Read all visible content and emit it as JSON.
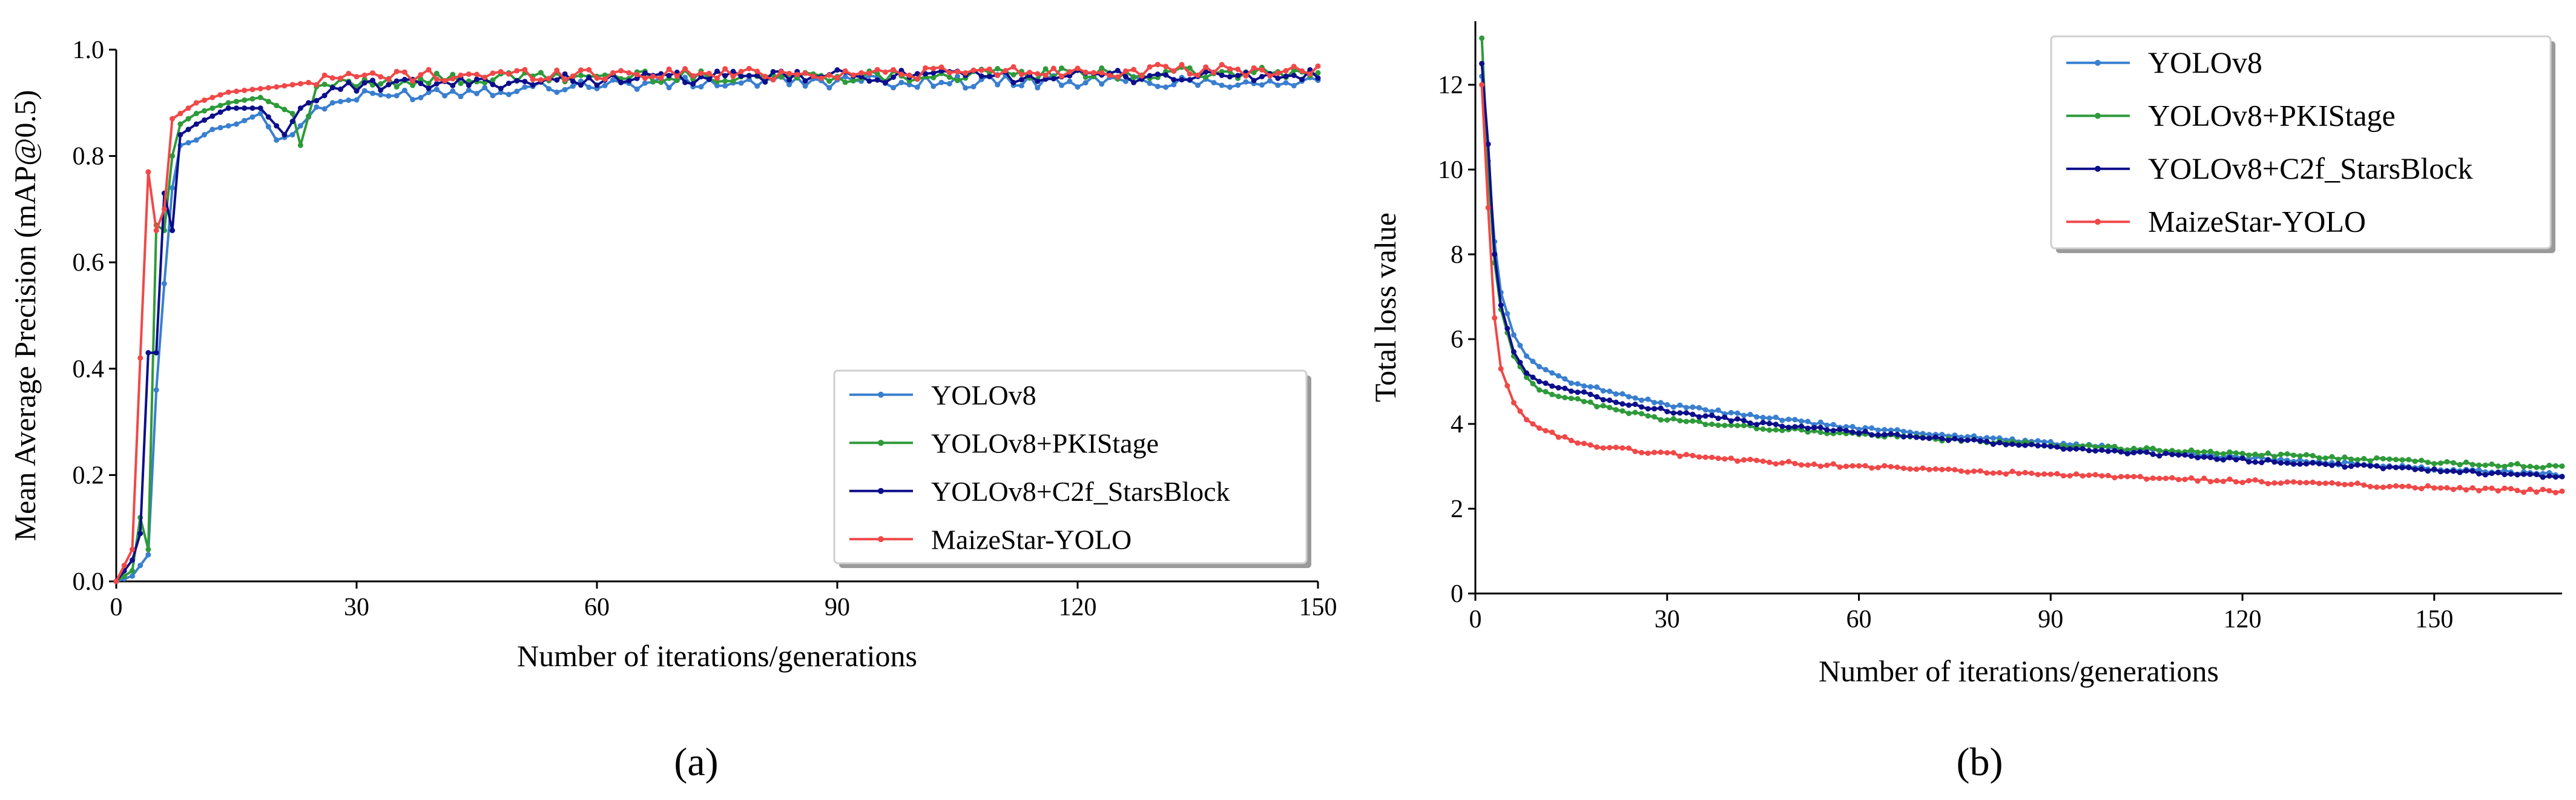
{
  "captions": {
    "a": "(a)",
    "b": "(b)"
  },
  "chart_data": [
    {
      "id": "a",
      "type": "line",
      "title": "",
      "xlabel": "Number of iterations/generations",
      "ylabel": "Mean Average Precision (mAP@0.5)",
      "xlim": [
        0,
        150
      ],
      "ylim": [
        0,
        1.0
      ],
      "xticks": [
        0,
        30,
        60,
        90,
        120,
        150
      ],
      "yticks": [
        0.0,
        0.2,
        0.4,
        0.6,
        0.8,
        1.0
      ],
      "ytick_labels": [
        "0.0",
        "0.2",
        "0.4",
        "0.6",
        "0.8",
        "1.0"
      ],
      "grid": false,
      "legend_position": "lower-right",
      "series": [
        {
          "name": "YOLOv8",
          "color": "#3a7fcf",
          "anchors": [
            [
              0,
              0
            ],
            [
              2,
              0.01
            ],
            [
              3,
              0.03
            ],
            [
              4,
              0.05
            ],
            [
              5,
              0.36
            ],
            [
              6,
              0.56
            ],
            [
              7,
              0.74
            ],
            [
              8,
              0.82
            ],
            [
              10,
              0.83
            ],
            [
              12,
              0.85
            ],
            [
              15,
              0.86
            ],
            [
              18,
              0.88
            ],
            [
              20,
              0.83
            ],
            [
              22,
              0.84
            ],
            [
              25,
              0.89
            ],
            [
              30,
              0.91
            ],
            [
              40,
              0.92
            ],
            [
              60,
              0.935
            ],
            [
              90,
              0.94
            ],
            [
              120,
              0.94
            ],
            [
              150,
              0.94
            ]
          ]
        },
        {
          "name": "YOLOv8+PKIStage",
          "color": "#2e9a3a",
          "anchors": [
            [
              0,
              0
            ],
            [
              2,
              0.02
            ],
            [
              3,
              0.12
            ],
            [
              4,
              0.06
            ],
            [
              5,
              0.67
            ],
            [
              6,
              0.66
            ],
            [
              7,
              0.8
            ],
            [
              8,
              0.86
            ],
            [
              10,
              0.88
            ],
            [
              14,
              0.9
            ],
            [
              18,
              0.91
            ],
            [
              22,
              0.88
            ],
            [
              23,
              0.82
            ],
            [
              25,
              0.93
            ],
            [
              30,
              0.94
            ],
            [
              60,
              0.95
            ],
            [
              90,
              0.95
            ],
            [
              120,
              0.955
            ],
            [
              150,
              0.955
            ]
          ]
        },
        {
          "name": "YOLOv8+C2f_StarsBlock",
          "color": "#0d0f8a",
          "anchors": [
            [
              0,
              0
            ],
            [
              2,
              0.04
            ],
            [
              3,
              0.09
            ],
            [
              4,
              0.43
            ],
            [
              5,
              0.43
            ],
            [
              6,
              0.73
            ],
            [
              7,
              0.66
            ],
            [
              8,
              0.84
            ],
            [
              10,
              0.86
            ],
            [
              14,
              0.89
            ],
            [
              18,
              0.89
            ],
            [
              21,
              0.84
            ],
            [
              23,
              0.89
            ],
            [
              26,
              0.92
            ],
            [
              30,
              0.93
            ],
            [
              60,
              0.945
            ],
            [
              90,
              0.95
            ],
            [
              120,
              0.95
            ],
            [
              150,
              0.95
            ]
          ]
        },
        {
          "name": "MaizeStar-YOLO",
          "color": "#f04848",
          "anchors": [
            [
              0,
              0
            ],
            [
              2,
              0.06
            ],
            [
              3,
              0.42
            ],
            [
              4,
              0.77
            ],
            [
              5,
              0.66
            ],
            [
              6,
              0.7
            ],
            [
              7,
              0.87
            ],
            [
              8,
              0.88
            ],
            [
              10,
              0.9
            ],
            [
              14,
              0.92
            ],
            [
              20,
              0.93
            ],
            [
              25,
              0.94
            ],
            [
              30,
              0.95
            ],
            [
              60,
              0.955
            ],
            [
              90,
              0.955
            ],
            [
              120,
              0.96
            ],
            [
              150,
              0.96
            ]
          ]
        }
      ]
    },
    {
      "id": "b",
      "type": "line",
      "title": "",
      "xlabel": "Number of iterations/generations",
      "ylabel": "Total loss value",
      "xlim": [
        0,
        170
      ],
      "ylim": [
        0,
        13.5
      ],
      "xticks": [
        0,
        30,
        60,
        90,
        120,
        150
      ],
      "yticks": [
        0,
        2,
        4,
        6,
        8,
        10,
        12
      ],
      "ytick_labels": [
        "0",
        "2",
        "4",
        "6",
        "8",
        "10",
        "12"
      ],
      "grid": false,
      "legend_position": "top-right",
      "series": [
        {
          "name": "YOLOv8",
          "color": "#3a7fcf",
          "anchors": [
            [
              1,
              12.2
            ],
            [
              2,
              10.2
            ],
            [
              3,
              8.3
            ],
            [
              4,
              7.1
            ],
            [
              6,
              6.1
            ],
            [
              8,
              5.6
            ],
            [
              10,
              5.35
            ],
            [
              15,
              5.0
            ],
            [
              20,
              4.8
            ],
            [
              30,
              4.45
            ],
            [
              45,
              4.15
            ],
            [
              60,
              3.9
            ],
            [
              90,
              3.55
            ],
            [
              120,
              3.2
            ],
            [
              150,
              2.95
            ],
            [
              170,
              2.8
            ]
          ]
        },
        {
          "name": "YOLOv8+PKIStage",
          "color": "#2e9a3a",
          "anchors": [
            [
              1,
              13.1
            ],
            [
              2,
              10.0
            ],
            [
              3,
              7.8
            ],
            [
              4,
              6.7
            ],
            [
              6,
              5.6
            ],
            [
              8,
              5.1
            ],
            [
              10,
              4.8
            ],
            [
              15,
              4.6
            ],
            [
              20,
              4.4
            ],
            [
              30,
              4.1
            ],
            [
              45,
              3.9
            ],
            [
              60,
              3.75
            ],
            [
              90,
              3.5
            ],
            [
              120,
              3.3
            ],
            [
              150,
              3.1
            ],
            [
              170,
              2.98
            ]
          ]
        },
        {
          "name": "YOLOv8+C2f_StarsBlock",
          "color": "#0d0f8a",
          "anchors": [
            [
              1,
              12.5
            ],
            [
              2,
              10.6
            ],
            [
              3,
              8.0
            ],
            [
              4,
              6.8
            ],
            [
              6,
              5.7
            ],
            [
              8,
              5.2
            ],
            [
              10,
              5.0
            ],
            [
              15,
              4.8
            ],
            [
              20,
              4.6
            ],
            [
              30,
              4.3
            ],
            [
              45,
              4.0
            ],
            [
              60,
              3.8
            ],
            [
              90,
              3.45
            ],
            [
              120,
              3.15
            ],
            [
              150,
              2.9
            ],
            [
              170,
              2.75
            ]
          ]
        },
        {
          "name": "MaizeStar-YOLO",
          "color": "#f04848",
          "anchors": [
            [
              1,
              12.0
            ],
            [
              2,
              9.1
            ],
            [
              3,
              6.5
            ],
            [
              4,
              5.3
            ],
            [
              6,
              4.5
            ],
            [
              8,
              4.1
            ],
            [
              10,
              3.9
            ],
            [
              15,
              3.6
            ],
            [
              20,
              3.45
            ],
            [
              30,
              3.3
            ],
            [
              45,
              3.1
            ],
            [
              60,
              3.0
            ],
            [
              90,
              2.8
            ],
            [
              120,
              2.65
            ],
            [
              150,
              2.5
            ],
            [
              170,
              2.4
            ]
          ]
        }
      ]
    }
  ]
}
